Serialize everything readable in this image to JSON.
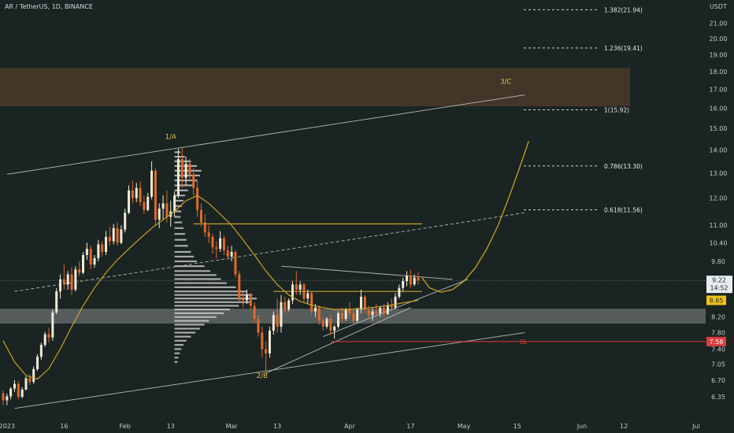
{
  "header": {
    "symbol_line": "AR / TetherUS, 1D, BINANCE"
  },
  "colors": {
    "background": "#1a2422",
    "up_candle": "#f0ead6",
    "down_candle": "#e06a2a",
    "ma_line": "#c9a227",
    "trend_line": "#bfbfbf",
    "resistance_zone": "#4a3a2a",
    "support_zone": "#6b6f70",
    "stop_loss": "#e03b3b",
    "price_badge": "#f0c419"
  },
  "chart_data": {
    "type": "candlestick",
    "title": "AR / TetherUS, 1D, BINANCE",
    "y_unit": "USDT",
    "y_axis_scale": "log",
    "ylim": [
      6.1,
      27.0
    ],
    "y_ticks": [
      "21.00",
      "20.00",
      "19.00",
      "18.00",
      "17.00",
      "16.00",
      "15.00",
      "14.00",
      "13.00",
      "12.00",
      "11.00",
      "10.40",
      "9.80",
      "9.22",
      "8.65",
      "8.20",
      "7.80",
      "7.40",
      "7.05",
      "6.70",
      "6.35"
    ],
    "x_axis": {
      "start_date": "2022-12-31",
      "end_date": "2023-07-01",
      "ticks": [
        {
          "label": "2023",
          "date": "2023-01-01"
        },
        {
          "label": "16",
          "date": "2023-01-16"
        },
        {
          "label": "Feb",
          "date": "2023-02-01"
        },
        {
          "label": "13",
          "date": "2023-02-13"
        },
        {
          "label": "Mar",
          "date": "2023-03-01"
        },
        {
          "label": "13",
          "date": "2023-03-13"
        },
        {
          "label": "Apr",
          "date": "2023-04-01"
        },
        {
          "label": "17",
          "date": "2023-04-17"
        },
        {
          "label": "May",
          "date": "2023-05-01"
        },
        {
          "label": "15",
          "date": "2023-05-15"
        },
        {
          "label": "Jun",
          "date": "2023-06-01"
        },
        {
          "label": "12",
          "date": "2023-06-12"
        },
        {
          "label": "Jul",
          "date": "2023-07-01"
        }
      ]
    },
    "last_price": "9.22",
    "countdown": "14:52",
    "ma_price": "8.65",
    "stop_loss_price": "7.58",
    "stop_loss_label": "SL",
    "wave_labels": [
      {
        "text": "1/A",
        "date": "2023-02-13",
        "price": 14.5
      },
      {
        "text": "2/B",
        "date": "2023-03-09",
        "price": 6.75
      },
      {
        "text": "3/C",
        "date": "2023-05-12",
        "price": 17.3
      }
    ],
    "fib_levels": [
      {
        "label": "1.382(21.94)",
        "price": 21.94
      },
      {
        "label": "1.236(19.41)",
        "price": 19.41
      },
      {
        "label": "1(15.92)",
        "price": 15.92
      },
      {
        "label": "0.786(13.30)",
        "price": 13.3
      },
      {
        "label": "0.618(11.56)",
        "price": 11.56
      }
    ],
    "zones": [
      {
        "name": "resistance",
        "from": 16.1,
        "to": 18.2
      },
      {
        "name": "support",
        "from": 8.03,
        "to": 8.42
      }
    ],
    "horizontal_levels": [
      {
        "price": 11.05,
        "from": "2023-02-19",
        "to": "2023-04-20"
      },
      {
        "price": 8.9,
        "from": "2023-03-12",
        "to": "2023-04-20"
      }
    ],
    "candles": [
      [
        "2022-12-31",
        6.42,
        6.48,
        6.18,
        6.28
      ],
      [
        "2023-01-01",
        6.28,
        6.42,
        6.18,
        6.36
      ],
      [
        "2023-01-02",
        6.36,
        6.55,
        6.3,
        6.52
      ],
      [
        "2023-01-03",
        6.52,
        6.7,
        6.45,
        6.62
      ],
      [
        "2023-01-04",
        6.62,
        6.68,
        6.3,
        6.35
      ],
      [
        "2023-01-05",
        6.35,
        6.55,
        6.32,
        6.5
      ],
      [
        "2023-01-06",
        6.5,
        6.78,
        6.48,
        6.74
      ],
      [
        "2023-01-07",
        6.74,
        6.82,
        6.6,
        6.66
      ],
      [
        "2023-01-08",
        6.66,
        7.0,
        6.62,
        6.94
      ],
      [
        "2023-01-09",
        6.94,
        7.28,
        6.9,
        7.22
      ],
      [
        "2023-01-10",
        7.22,
        7.55,
        7.15,
        7.5
      ],
      [
        "2023-01-11",
        7.5,
        7.82,
        7.45,
        7.76
      ],
      [
        "2023-01-12",
        7.76,
        7.92,
        7.55,
        7.68
      ],
      [
        "2023-01-13",
        7.68,
        8.4,
        7.6,
        8.32
      ],
      [
        "2023-01-14",
        8.32,
        9.0,
        8.28,
        8.9
      ],
      [
        "2023-01-15",
        8.9,
        9.4,
        8.7,
        9.25
      ],
      [
        "2023-01-16",
        9.25,
        9.7,
        8.95,
        9.1
      ],
      [
        "2023-01-17",
        9.1,
        9.5,
        8.95,
        9.4
      ],
      [
        "2023-01-18",
        9.4,
        9.62,
        8.8,
        8.95
      ],
      [
        "2023-01-19",
        8.95,
        9.65,
        8.9,
        9.55
      ],
      [
        "2023-01-20",
        9.55,
        9.8,
        9.35,
        9.45
      ],
      [
        "2023-01-21",
        9.45,
        10.1,
        9.4,
        10.0
      ],
      [
        "2023-01-22",
        10.0,
        10.4,
        9.85,
        10.2
      ],
      [
        "2023-01-23",
        10.2,
        10.3,
        9.55,
        9.7
      ],
      [
        "2023-01-24",
        9.7,
        10.0,
        9.6,
        9.9
      ],
      [
        "2023-01-25",
        9.9,
        10.5,
        9.8,
        10.35
      ],
      [
        "2023-01-26",
        10.35,
        10.45,
        9.95,
        10.1
      ],
      [
        "2023-01-27",
        10.1,
        10.8,
        10.0,
        10.6
      ],
      [
        "2023-01-28",
        10.6,
        10.95,
        10.3,
        10.45
      ],
      [
        "2023-01-29",
        10.45,
        11.05,
        10.35,
        10.9
      ],
      [
        "2023-01-30",
        10.9,
        11.1,
        10.3,
        10.4
      ],
      [
        "2023-01-31",
        10.4,
        11.0,
        10.35,
        10.85
      ],
      [
        "2023-02-01",
        10.85,
        11.6,
        10.75,
        11.45
      ],
      [
        "2023-02-02",
        11.45,
        12.5,
        11.4,
        12.3
      ],
      [
        "2023-02-03",
        12.3,
        12.7,
        11.8,
        12.0
      ],
      [
        "2023-02-04",
        12.0,
        12.6,
        11.85,
        12.4
      ],
      [
        "2023-02-05",
        12.4,
        12.65,
        11.7,
        11.85
      ],
      [
        "2023-02-06",
        11.85,
        12.1,
        11.4,
        11.55
      ],
      [
        "2023-02-07",
        11.55,
        12.2,
        11.5,
        12.05
      ],
      [
        "2023-02-08",
        12.05,
        13.5,
        11.95,
        13.1
      ],
      [
        "2023-02-09",
        13.1,
        13.2,
        11.0,
        11.2
      ],
      [
        "2023-02-10",
        11.2,
        11.8,
        10.9,
        11.6
      ],
      [
        "2023-02-11",
        11.6,
        12.1,
        11.2,
        11.8
      ],
      [
        "2023-02-12",
        11.8,
        12.3,
        11.1,
        11.3
      ],
      [
        "2023-02-13",
        11.3,
        11.9,
        10.95,
        11.5
      ],
      [
        "2023-02-14",
        11.5,
        12.25,
        11.3,
        12.1
      ],
      [
        "2023-02-15",
        12.1,
        14.05,
        12.0,
        13.6
      ],
      [
        "2023-02-16",
        13.6,
        14.1,
        12.4,
        12.8
      ],
      [
        "2023-02-17",
        12.8,
        13.7,
        12.5,
        13.4
      ],
      [
        "2023-02-18",
        13.4,
        13.6,
        12.7,
        12.95
      ],
      [
        "2023-02-19",
        12.95,
        13.2,
        12.1,
        12.4
      ],
      [
        "2023-02-20",
        12.4,
        12.7,
        11.3,
        11.55
      ],
      [
        "2023-02-21",
        11.55,
        11.8,
        10.95,
        11.1
      ],
      [
        "2023-02-22",
        11.1,
        11.4,
        10.6,
        10.75
      ],
      [
        "2023-02-23",
        10.75,
        11.0,
        10.4,
        10.6
      ],
      [
        "2023-02-24",
        10.6,
        10.7,
        10.05,
        10.25
      ],
      [
        "2023-02-25",
        10.25,
        10.45,
        9.9,
        10.2
      ],
      [
        "2023-02-26",
        10.2,
        10.8,
        10.1,
        10.55
      ],
      [
        "2023-02-27",
        10.55,
        10.65,
        10.0,
        10.15
      ],
      [
        "2023-02-28",
        10.15,
        10.3,
        9.85,
        9.95
      ],
      [
        "2023-03-01",
        9.95,
        10.3,
        9.8,
        10.1
      ],
      [
        "2023-03-02",
        10.1,
        10.15,
        9.3,
        9.4
      ],
      [
        "2023-03-03",
        9.4,
        9.5,
        8.6,
        8.7
      ],
      [
        "2023-03-04",
        8.7,
        8.9,
        8.45,
        8.65
      ],
      [
        "2023-03-05",
        8.65,
        8.95,
        8.55,
        8.8
      ],
      [
        "2023-03-06",
        8.8,
        8.85,
        8.4,
        8.5
      ],
      [
        "2023-03-07",
        8.5,
        8.6,
        8.05,
        8.15
      ],
      [
        "2023-03-08",
        8.15,
        8.25,
        7.7,
        7.8
      ],
      [
        "2023-03-09",
        7.8,
        7.95,
        7.2,
        7.4
      ],
      [
        "2023-03-10",
        7.4,
        7.6,
        6.9,
        7.3
      ],
      [
        "2023-03-11",
        7.3,
        7.95,
        7.2,
        7.85
      ],
      [
        "2023-03-12",
        7.85,
        8.35,
        7.75,
        8.25
      ],
      [
        "2023-03-13",
        8.25,
        8.7,
        7.8,
        7.95
      ],
      [
        "2023-03-14",
        7.95,
        8.8,
        7.8,
        8.6
      ],
      [
        "2023-03-15",
        8.6,
        8.75,
        8.3,
        8.4
      ],
      [
        "2023-03-16",
        8.4,
        8.7,
        8.35,
        8.65
      ],
      [
        "2023-03-17",
        8.65,
        9.2,
        8.55,
        9.1
      ],
      [
        "2023-03-18",
        9.1,
        9.5,
        8.8,
        8.95
      ],
      [
        "2023-03-19",
        8.95,
        9.2,
        8.8,
        9.1
      ],
      [
        "2023-03-20",
        9.1,
        9.15,
        8.6,
        8.7
      ],
      [
        "2023-03-21",
        8.7,
        8.95,
        8.55,
        8.85
      ],
      [
        "2023-03-22",
        8.85,
        8.9,
        8.25,
        8.35
      ],
      [
        "2023-03-23",
        8.35,
        8.55,
        8.2,
        8.45
      ],
      [
        "2023-03-24",
        8.45,
        8.5,
        8.0,
        8.1
      ],
      [
        "2023-03-25",
        8.1,
        8.2,
        7.85,
        7.95
      ],
      [
        "2023-03-26",
        7.95,
        8.2,
        7.9,
        8.15
      ],
      [
        "2023-03-27",
        8.15,
        8.25,
        7.75,
        7.85
      ],
      [
        "2023-03-28",
        7.85,
        8.0,
        7.65,
        7.95
      ],
      [
        "2023-03-29",
        7.95,
        8.35,
        7.9,
        8.3
      ],
      [
        "2023-03-30",
        8.3,
        8.45,
        8.05,
        8.15
      ],
      [
        "2023-03-31",
        8.15,
        8.45,
        8.1,
        8.4
      ],
      [
        "2023-04-01",
        8.4,
        8.6,
        8.2,
        8.3
      ],
      [
        "2023-04-02",
        8.3,
        8.4,
        8.0,
        8.1
      ],
      [
        "2023-04-03",
        8.1,
        8.45,
        8.05,
        8.4
      ],
      [
        "2023-04-04",
        8.4,
        8.95,
        8.3,
        8.75
      ],
      [
        "2023-04-05",
        8.75,
        8.8,
        8.3,
        8.4
      ],
      [
        "2023-04-06",
        8.4,
        8.5,
        8.15,
        8.25
      ],
      [
        "2023-04-07",
        8.25,
        8.45,
        8.1,
        8.35
      ],
      [
        "2023-04-08",
        8.35,
        8.55,
        8.25,
        8.3
      ],
      [
        "2023-04-09",
        8.3,
        8.5,
        8.2,
        8.45
      ],
      [
        "2023-04-10",
        8.45,
        8.55,
        8.2,
        8.28
      ],
      [
        "2023-04-11",
        8.28,
        8.6,
        8.25,
        8.5
      ],
      [
        "2023-04-12",
        8.5,
        8.7,
        8.35,
        8.45
      ],
      [
        "2023-04-13",
        8.45,
        8.85,
        8.4,
        8.75
      ],
      [
        "2023-04-14",
        8.75,
        9.1,
        8.7,
        9.0
      ],
      [
        "2023-04-15",
        9.0,
        9.3,
        8.9,
        9.2
      ],
      [
        "2023-04-16",
        9.2,
        9.5,
        9.05,
        9.35
      ],
      [
        "2023-04-17",
        9.35,
        9.55,
        9.0,
        9.1
      ],
      [
        "2023-04-18",
        9.1,
        9.4,
        9.05,
        9.3
      ],
      [
        "2023-04-19",
        9.3,
        9.45,
        9.1,
        9.22
      ]
    ],
    "ma_series": [
      [
        "2022-12-31",
        7.6
      ],
      [
        "2023-01-03",
        7.1
      ],
      [
        "2023-01-06",
        6.8
      ],
      [
        "2023-01-09",
        6.72
      ],
      [
        "2023-01-12",
        6.95
      ],
      [
        "2023-01-15",
        7.4
      ],
      [
        "2023-01-18",
        7.95
      ],
      [
        "2023-01-21",
        8.5
      ],
      [
        "2023-01-24",
        9.0
      ],
      [
        "2023-01-27",
        9.45
      ],
      [
        "2023-01-30",
        9.85
      ],
      [
        "2023-02-02",
        10.2
      ],
      [
        "2023-02-05",
        10.55
      ],
      [
        "2023-02-08",
        10.9
      ],
      [
        "2023-02-11",
        11.2
      ],
      [
        "2023-02-14",
        11.5
      ],
      [
        "2023-02-17",
        11.9
      ],
      [
        "2023-02-20",
        12.1
      ],
      [
        "2023-02-23",
        11.8
      ],
      [
        "2023-02-26",
        11.4
      ],
      [
        "2023-03-01",
        11.0
      ],
      [
        "2023-03-04",
        10.5
      ],
      [
        "2023-03-07",
        10.0
      ],
      [
        "2023-03-10",
        9.5
      ],
      [
        "2023-03-13",
        9.1
      ],
      [
        "2023-03-16",
        8.8
      ],
      [
        "2023-03-19",
        8.62
      ],
      [
        "2023-03-22",
        8.52
      ],
      [
        "2023-03-25",
        8.45
      ],
      [
        "2023-03-28",
        8.4
      ],
      [
        "2023-03-31",
        8.4
      ],
      [
        "2023-04-03",
        8.42
      ],
      [
        "2023-04-06",
        8.44
      ],
      [
        "2023-04-09",
        8.48
      ],
      [
        "2023-04-12",
        8.52
      ],
      [
        "2023-04-15",
        8.58
      ],
      [
        "2023-04-19",
        8.65
      ]
    ],
    "projection_path": [
      [
        "2023-04-20",
        9.3
      ],
      [
        "2023-04-22",
        9.0
      ],
      [
        "2023-04-25",
        8.88
      ],
      [
        "2023-04-28",
        8.95
      ],
      [
        "2023-05-01",
        9.2
      ],
      [
        "2023-05-04",
        9.6
      ],
      [
        "2023-05-07",
        10.2
      ],
      [
        "2023-05-10",
        11.0
      ],
      [
        "2023-05-13",
        12.1
      ],
      [
        "2023-05-16",
        13.4
      ],
      [
        "2023-05-18",
        14.4
      ]
    ],
    "trend_lines": [
      {
        "name": "channel-upper",
        "p1": [
          "2023-01-01",
          12.95
        ],
        "p2": [
          "2023-05-17",
          16.7
        ],
        "style": "solid"
      },
      {
        "name": "channel-lower",
        "p1": [
          "2023-01-03",
          6.12
        ],
        "p2": [
          "2023-05-17",
          7.8
        ],
        "style": "solid"
      },
      {
        "name": "dashed-midline",
        "p1": [
          "2023-01-03",
          8.9
        ],
        "p2": [
          "2023-05-17",
          11.45
        ],
        "style": "dashed"
      },
      {
        "name": "triangle-top",
        "p1": [
          "2023-03-14",
          9.65
        ],
        "p2": [
          "2023-04-28",
          9.25
        ],
        "style": "solid"
      },
      {
        "name": "triangle-support",
        "p1": [
          "2023-03-25",
          7.7
        ],
        "p2": [
          "2023-05-02",
          9.25
        ],
        "style": "solid"
      },
      {
        "name": "wave2-support",
        "p1": [
          "2023-03-10",
          6.85
        ],
        "p2": [
          "2023-04-17",
          8.45
        ],
        "style": "solid"
      }
    ],
    "volume_profile": {
      "anchor_date": "2023-02-14",
      "rows": [
        [
          13.9,
          8
        ],
        [
          13.7,
          14
        ],
        [
          13.5,
          22
        ],
        [
          13.3,
          30
        ],
        [
          13.1,
          36
        ],
        [
          12.9,
          34
        ],
        [
          12.7,
          30
        ],
        [
          12.5,
          24
        ],
        [
          12.3,
          18
        ],
        [
          12.1,
          14
        ],
        [
          11.9,
          12
        ],
        [
          11.7,
          10
        ],
        [
          11.5,
          9
        ],
        [
          11.3,
          8
        ],
        [
          11.1,
          10
        ],
        [
          10.9,
          12
        ],
        [
          10.7,
          14
        ],
        [
          10.5,
          16
        ],
        [
          10.3,
          18
        ],
        [
          10.1,
          22
        ],
        [
          9.95,
          26
        ],
        [
          9.8,
          30
        ],
        [
          9.65,
          40
        ],
        [
          9.5,
          48
        ],
        [
          9.38,
          56
        ],
        [
          9.26,
          62
        ],
        [
          9.14,
          70
        ],
        [
          9.02,
          82
        ],
        [
          8.9,
          96
        ],
        [
          8.8,
          104
        ],
        [
          8.7,
          110
        ],
        [
          8.6,
          100
        ],
        [
          8.5,
          86
        ],
        [
          8.4,
          74
        ],
        [
          8.3,
          66
        ],
        [
          8.2,
          56
        ],
        [
          8.1,
          46
        ],
        [
          8.0,
          40
        ],
        [
          7.9,
          34
        ],
        [
          7.8,
          28
        ],
        [
          7.7,
          22
        ],
        [
          7.6,
          16
        ],
        [
          7.5,
          12
        ],
        [
          7.4,
          9
        ],
        [
          7.3,
          7
        ],
        [
          7.2,
          5
        ],
        [
          7.1,
          4
        ]
      ]
    }
  }
}
